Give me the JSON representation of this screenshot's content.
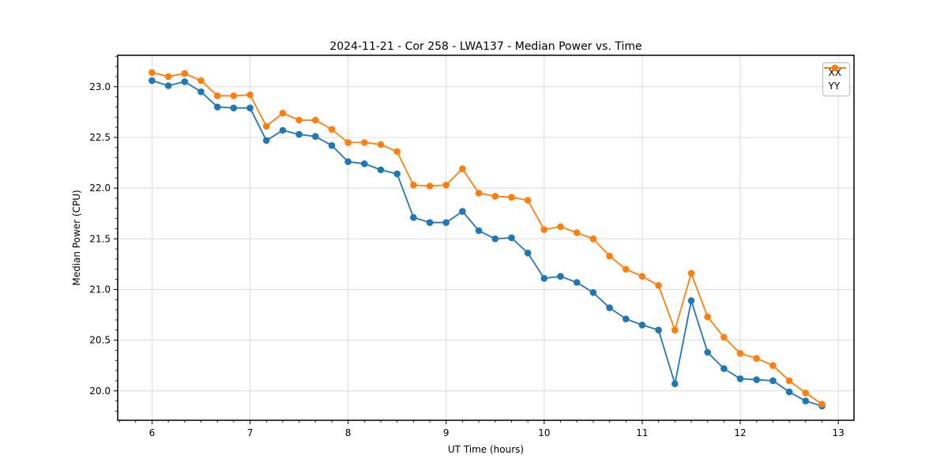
{
  "chart_data": {
    "type": "line",
    "title": "2024-11-21 - Cor 258 - LWA137 - Median Power vs. Time",
    "xlabel": "UT Time (hours)",
    "ylabel": "Median Power (CPU)",
    "xlim": [
      5.65,
      13.16
    ],
    "ylim": [
      19.71,
      23.31
    ],
    "xticks": [
      6,
      7,
      8,
      9,
      10,
      11,
      12,
      13
    ],
    "xtick_labels": [
      "6",
      "7",
      "8",
      "9",
      "10",
      "11",
      "12",
      "13"
    ],
    "yticks": [
      20.0,
      20.5,
      21.0,
      21.5,
      22.0,
      22.5,
      23.0
    ],
    "ytick_labels": [
      "20.0",
      "20.5",
      "21.0",
      "21.5",
      "22.0",
      "22.5",
      "23.0"
    ],
    "grid": true,
    "grid_color": "#dcdcdc",
    "legend_position": "upper right",
    "marker": "o",
    "x": [
      6.0,
      6.1667,
      6.3333,
      6.5,
      6.6667,
      6.8333,
      7.0,
      7.1667,
      7.3333,
      7.5,
      7.6667,
      7.8333,
      8.0,
      8.1667,
      8.3333,
      8.5,
      8.6667,
      8.8333,
      9.0,
      9.1667,
      9.3333,
      9.5,
      9.6667,
      9.8333,
      10.0,
      10.1667,
      10.3333,
      10.5,
      10.6667,
      10.8333,
      11.0,
      11.1667,
      11.3333,
      11.5,
      11.6667,
      11.8333,
      12.0,
      12.1667,
      12.3333,
      12.5,
      12.6667,
      12.8333
    ],
    "series": [
      {
        "name": "XX",
        "color": "#1f77b4",
        "values": [
          23.06,
          23.01,
          23.05,
          22.95,
          22.8,
          22.79,
          22.79,
          22.47,
          22.57,
          22.53,
          22.51,
          22.42,
          22.26,
          22.24,
          22.18,
          22.14,
          21.71,
          21.66,
          21.66,
          21.77,
          21.58,
          21.5,
          21.51,
          21.36,
          21.11,
          21.13,
          21.07,
          20.97,
          20.82,
          20.71,
          20.65,
          20.6,
          20.07,
          20.89,
          20.38,
          20.22,
          20.12,
          20.11,
          20.1,
          19.99,
          19.9,
          19.85
        ]
      },
      {
        "name": "YY",
        "color": "#ff7f0e",
        "values": [
          23.14,
          23.1,
          23.13,
          23.06,
          22.91,
          22.91,
          22.92,
          22.61,
          22.74,
          22.67,
          22.67,
          22.58,
          22.45,
          22.45,
          22.43,
          22.36,
          22.03,
          22.02,
          22.03,
          22.19,
          21.95,
          21.92,
          21.91,
          21.88,
          21.59,
          21.62,
          21.56,
          21.5,
          21.33,
          21.2,
          21.13,
          21.04,
          20.6,
          21.16,
          20.73,
          20.53,
          20.37,
          20.32,
          20.25,
          20.1,
          19.98,
          19.87
        ]
      }
    ]
  }
}
